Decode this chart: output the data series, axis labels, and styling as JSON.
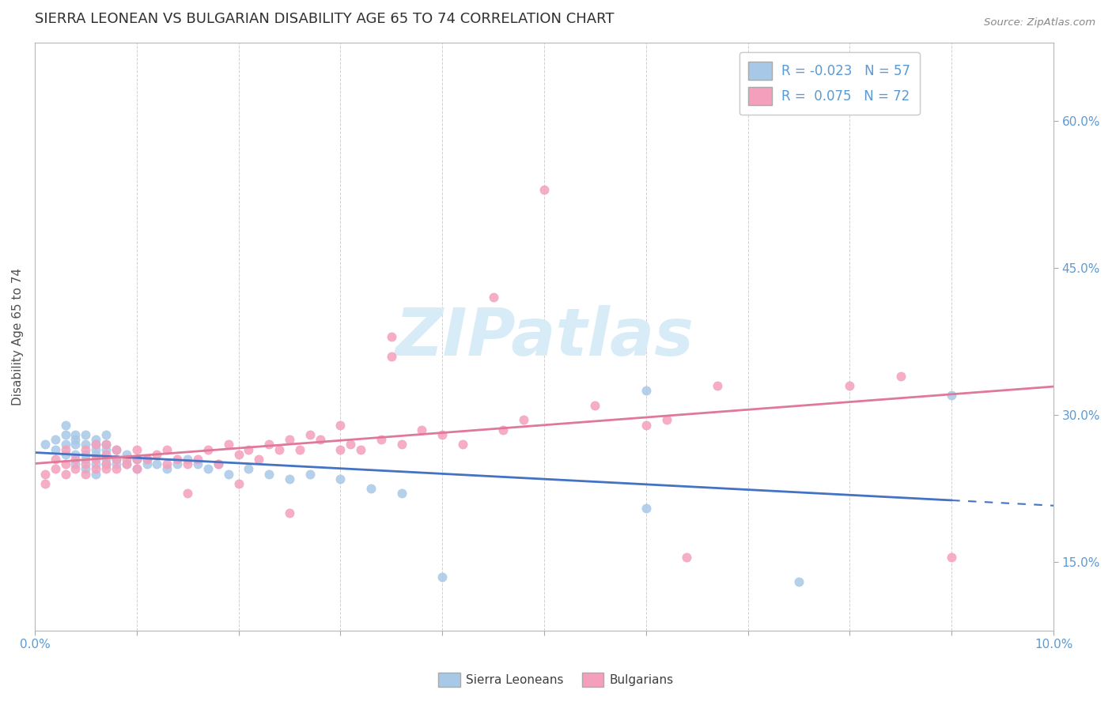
{
  "title": "SIERRA LEONEAN VS BULGARIAN DISABILITY AGE 65 TO 74 CORRELATION CHART",
  "source": "Source: ZipAtlas.com",
  "ylabel": "Disability Age 65 to 74",
  "xlim": [
    0.0,
    0.1
  ],
  "ylim": [
    0.08,
    0.68
  ],
  "yticks_right": [
    0.15,
    0.3,
    0.45,
    0.6
  ],
  "ytick_labels_right": [
    "15.0%",
    "30.0%",
    "45.0%",
    "60.0%"
  ],
  "sierra_R": -0.023,
  "sierra_N": 57,
  "bulgarian_R": 0.075,
  "bulgarian_N": 72,
  "sierra_color": "#a8c8e8",
  "bulgarian_color": "#f4a0bc",
  "sierra_line_color": "#4472c4",
  "bulgarian_line_color": "#e07898",
  "background_color": "#ffffff",
  "grid_color": "#cccccc",
  "title_color": "#303030",
  "axis_color": "#5b9bd5",
  "watermark_color": "#d8ecf8",
  "seed": 123,
  "sl_x": [
    0.001,
    0.002,
    0.002,
    0.003,
    0.003,
    0.003,
    0.003,
    0.004,
    0.004,
    0.004,
    0.004,
    0.004,
    0.005,
    0.005,
    0.005,
    0.005,
    0.005,
    0.006,
    0.006,
    0.006,
    0.006,
    0.006,
    0.006,
    0.007,
    0.007,
    0.007,
    0.007,
    0.007,
    0.008,
    0.008,
    0.008,
    0.009,
    0.009,
    0.01,
    0.01,
    0.011,
    0.011,
    0.012,
    0.013,
    0.014,
    0.015,
    0.016,
    0.017,
    0.018,
    0.019,
    0.021,
    0.023,
    0.025,
    0.027,
    0.03,
    0.033,
    0.036,
    0.04,
    0.06,
    0.06,
    0.075,
    0.09
  ],
  "sl_y": [
    0.27,
    0.265,
    0.275,
    0.26,
    0.27,
    0.28,
    0.29,
    0.25,
    0.26,
    0.27,
    0.275,
    0.28,
    0.245,
    0.255,
    0.26,
    0.27,
    0.28,
    0.24,
    0.25,
    0.26,
    0.265,
    0.27,
    0.275,
    0.25,
    0.255,
    0.265,
    0.27,
    0.28,
    0.25,
    0.255,
    0.265,
    0.25,
    0.26,
    0.245,
    0.255,
    0.25,
    0.255,
    0.25,
    0.245,
    0.25,
    0.255,
    0.25,
    0.245,
    0.25,
    0.24,
    0.245,
    0.24,
    0.235,
    0.24,
    0.235,
    0.225,
    0.22,
    0.135,
    0.205,
    0.325,
    0.13,
    0.32
  ],
  "bg_x": [
    0.001,
    0.001,
    0.002,
    0.002,
    0.003,
    0.003,
    0.003,
    0.004,
    0.004,
    0.005,
    0.005,
    0.005,
    0.006,
    0.006,
    0.006,
    0.007,
    0.007,
    0.007,
    0.007,
    0.008,
    0.008,
    0.008,
    0.009,
    0.009,
    0.01,
    0.01,
    0.01,
    0.011,
    0.012,
    0.013,
    0.013,
    0.014,
    0.015,
    0.016,
    0.017,
    0.018,
    0.019,
    0.02,
    0.021,
    0.022,
    0.023,
    0.024,
    0.025,
    0.026,
    0.027,
    0.028,
    0.03,
    0.031,
    0.032,
    0.034,
    0.035,
    0.036,
    0.038,
    0.04,
    0.042,
    0.046,
    0.048,
    0.055,
    0.06,
    0.062,
    0.064,
    0.067,
    0.08,
    0.085,
    0.09,
    0.045,
    0.05,
    0.035,
    0.025,
    0.03,
    0.02,
    0.015
  ],
  "bg_y": [
    0.24,
    0.23,
    0.245,
    0.255,
    0.24,
    0.25,
    0.265,
    0.245,
    0.255,
    0.24,
    0.25,
    0.265,
    0.245,
    0.255,
    0.27,
    0.245,
    0.25,
    0.26,
    0.27,
    0.245,
    0.255,
    0.265,
    0.25,
    0.255,
    0.245,
    0.255,
    0.265,
    0.255,
    0.26,
    0.25,
    0.265,
    0.255,
    0.25,
    0.255,
    0.265,
    0.25,
    0.27,
    0.26,
    0.265,
    0.255,
    0.27,
    0.265,
    0.275,
    0.265,
    0.28,
    0.275,
    0.265,
    0.27,
    0.265,
    0.275,
    0.36,
    0.27,
    0.285,
    0.28,
    0.27,
    0.285,
    0.295,
    0.31,
    0.29,
    0.295,
    0.155,
    0.33,
    0.33,
    0.34,
    0.155,
    0.42,
    0.53,
    0.38,
    0.2,
    0.29,
    0.23,
    0.22
  ]
}
